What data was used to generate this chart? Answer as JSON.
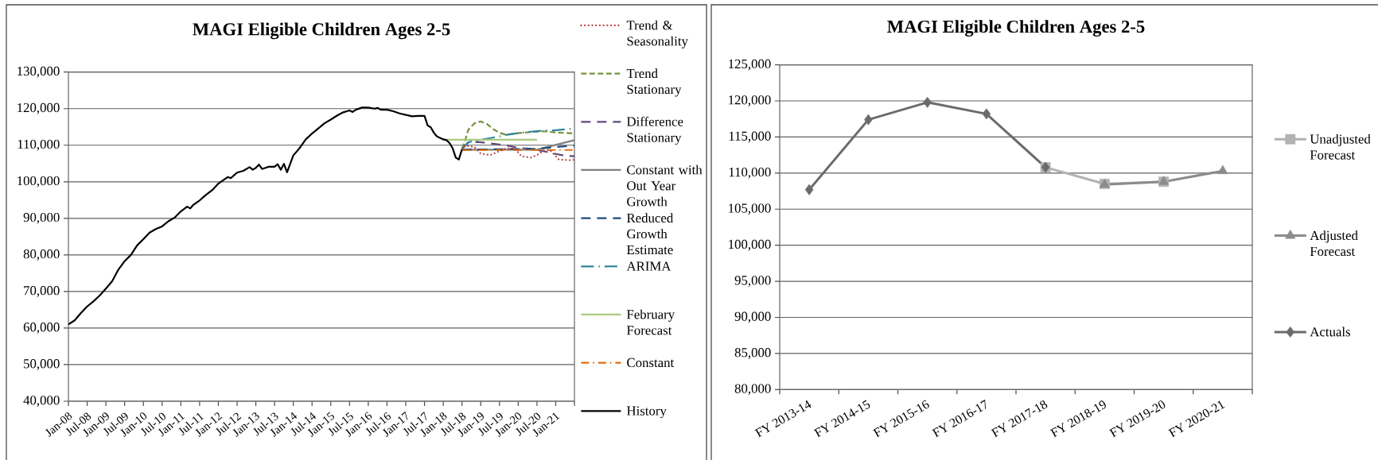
{
  "chart_data": [
    {
      "type": "line",
      "title": "MAGI Eligible Children Ages 2-5",
      "xlim": [
        "2008-01",
        "2021-07"
      ],
      "xticks": [
        {
          "value": "2008-01",
          "label": "Jan-08"
        },
        {
          "value": "2008-07",
          "label": "Jul-08"
        },
        {
          "value": "2009-01",
          "label": "Jan-09"
        },
        {
          "value": "2009-07",
          "label": "Jul-09"
        },
        {
          "value": "2010-01",
          "label": "Jan-10"
        },
        {
          "value": "2010-07",
          "label": "Jul-10"
        },
        {
          "value": "2011-01",
          "label": "Jan-11"
        },
        {
          "value": "2011-07",
          "label": "Jul-11"
        },
        {
          "value": "2012-01",
          "label": "Jan-12"
        },
        {
          "value": "2012-07",
          "label": "Jul-12"
        },
        {
          "value": "2013-01",
          "label": "Jan-13"
        },
        {
          "value": "2013-07",
          "label": "Jul-13"
        },
        {
          "value": "2014-01",
          "label": "Jan-14"
        },
        {
          "value": "2014-07",
          "label": "Jul-14"
        },
        {
          "value": "2015-01",
          "label": "Jan-15"
        },
        {
          "value": "2015-07",
          "label": "Jul-15"
        },
        {
          "value": "2016-01",
          "label": "Jan-16"
        },
        {
          "value": "2016-07",
          "label": "Jul-16"
        },
        {
          "value": "2017-01",
          "label": "Jan-17"
        },
        {
          "value": "2017-07",
          "label": "Jul-17"
        },
        {
          "value": "2018-01",
          "label": "Jan-18"
        },
        {
          "value": "2018-07",
          "label": "Jul-18"
        },
        {
          "value": "2019-01",
          "label": "Jan-19"
        },
        {
          "value": "2019-07",
          "label": "Jul-19"
        },
        {
          "value": "2020-01",
          "label": "Jan-20"
        },
        {
          "value": "2020-07",
          "label": "Jul-20"
        },
        {
          "value": "2021-01",
          "label": "Jan-21"
        },
        {
          "value": "2021-07",
          "label": null
        }
      ],
      "ylim": [
        40000,
        130000
      ],
      "yticks": [
        {
          "value": 40000,
          "label": "40,000"
        },
        {
          "value": 50000,
          "label": "50,000"
        },
        {
          "value": 60000,
          "label": "60,000"
        },
        {
          "value": 70000,
          "label": "70,000"
        },
        {
          "value": 80000,
          "label": "80,000"
        },
        {
          "value": 90000,
          "label": "90,000"
        },
        {
          "value": 100000,
          "label": "100,000"
        },
        {
          "value": 110000,
          "label": "110,000"
        },
        {
          "value": 120000,
          "label": "120,000"
        },
        {
          "value": 130000,
          "label": "130,000"
        }
      ],
      "grid": "y",
      "legend": "right",
      "series": [
        {
          "name": "Trend & Seasonality",
          "color": "#B0403C",
          "line_style": "dotted",
          "x": [
            "2018-07",
            "2018-08",
            "2018-11",
            "2019-01",
            "2019-04",
            "2019-06",
            "2019-09",
            "2019-12",
            "2020-02",
            "2020-05",
            "2020-07",
            "2020-09",
            "2020-11",
            "2021-02",
            "2021-05",
            "2021-07"
          ],
          "values": [
            109000,
            109900,
            109500,
            107700,
            107300,
            108000,
            109100,
            109100,
            107000,
            106600,
            107300,
            108400,
            108800,
            106100,
            105900,
            106000
          ]
        },
        {
          "name": "Trend Stationary",
          "color": "#77933C",
          "line_style": "dashed",
          "x": [
            "2018-07",
            "2018-08",
            "2018-09",
            "2018-11",
            "2019-01",
            "2019-03",
            "2019-05",
            "2019-07",
            "2019-09",
            "2019-11",
            "2020-01",
            "2020-05",
            "2020-09",
            "2021-01",
            "2021-05",
            "2021-07"
          ],
          "values": [
            109000,
            111300,
            114200,
            116000,
            116500,
            115800,
            114400,
            113400,
            112900,
            113100,
            113300,
            113600,
            113800,
            113500,
            113300,
            113300
          ]
        },
        {
          "name": "Difference Stationary",
          "color": "#604A7B",
          "line_style": "long dashed",
          "x": [
            "2018-07",
            "2018-09",
            "2018-12",
            "2019-04",
            "2019-09",
            "2020-01",
            "2020-05",
            "2020-09",
            "2020-12",
            "2021-04",
            "2021-07"
          ],
          "values": [
            109000,
            110700,
            110900,
            110500,
            110000,
            109300,
            109000,
            108400,
            107800,
            107100,
            107000
          ]
        },
        {
          "name": "Constant with Out Year Growth",
          "color": "#808080",
          "line_style": "solid",
          "x": [
            "2018-07",
            "2020-07",
            "2021-01",
            "2021-07"
          ],
          "values": [
            108800,
            108800,
            110100,
            111400
          ]
        },
        {
          "name": "Reduced Growth Estimate",
          "color": "#1F497D",
          "line_style": "long dashed",
          "x": [
            "2018-07",
            "2020-07",
            "2021-01",
            "2021-07"
          ],
          "values": [
            108800,
            109000,
            109500,
            109900
          ]
        },
        {
          "name": "ARIMA",
          "color": "#31859C",
          "line_style": "long dash dot",
          "x": [
            "2018-07",
            "2018-09",
            "2018-11",
            "2019-03",
            "2019-07",
            "2019-09",
            "2020-01",
            "2020-05",
            "2020-09",
            "2021-01",
            "2021-05",
            "2021-07"
          ],
          "values": [
            109000,
            110800,
            111200,
            111800,
            112400,
            112800,
            113300,
            113700,
            114000,
            114100,
            114400,
            114600
          ]
        },
        {
          "name": "February Forecast",
          "color": "#A9C97F",
          "line_style": "solid",
          "x": [
            "2018-01",
            "2020-07"
          ],
          "values": [
            111500,
            111500
          ]
        },
        {
          "name": "Constant",
          "color": "#E46C0A",
          "line_style": "dash dot",
          "x": [
            "2018-07",
            "2021-07"
          ],
          "values": [
            108700,
            108700
          ]
        },
        {
          "name": "History",
          "color": "#000000",
          "line_style": "solid",
          "x": [
            "2008-01",
            "2008-03",
            "2008-05",
            "2008-07",
            "2008-09",
            "2008-11",
            "2009-01",
            "2009-03",
            "2009-05",
            "2009-07",
            "2009-09",
            "2009-11",
            "2010-01",
            "2010-03",
            "2010-05",
            "2010-07",
            "2010-09",
            "2010-11",
            "2011-01",
            "2011-03",
            "2011-04",
            "2011-05",
            "2011-07",
            "2011-09",
            "2011-11",
            "2012-01",
            "2012-03",
            "2012-04",
            "2012-05",
            "2012-07",
            "2012-09",
            "2012-11",
            "2012-12",
            "2013-01",
            "2013-02",
            "2013-03",
            "2013-05",
            "2013-07",
            "2013-08",
            "2013-09",
            "2013-10",
            "2013-11",
            "2014-01",
            "2014-03",
            "2014-05",
            "2014-07",
            "2014-09",
            "2014-11",
            "2015-01",
            "2015-03",
            "2015-05",
            "2015-07",
            "2015-08",
            "2015-09",
            "2015-11",
            "2016-01",
            "2016-03",
            "2016-04",
            "2016-05",
            "2016-07",
            "2016-09",
            "2016-11",
            "2017-01",
            "2017-03",
            "2017-05",
            "2017-07",
            "2017-08",
            "2017-09",
            "2017-10",
            "2017-11",
            "2018-01",
            "2018-02",
            "2018-03",
            "2018-04",
            "2018-05",
            "2018-06",
            "2018-07"
          ],
          "values": [
            61000,
            62100,
            64100,
            65900,
            67300,
            68900,
            70800,
            72800,
            76000,
            78300,
            80000,
            82600,
            84300,
            86100,
            87100,
            87800,
            89200,
            90200,
            91900,
            93200,
            92700,
            93700,
            94900,
            96400,
            97700,
            99500,
            100700,
            101300,
            101000,
            102500,
            103000,
            104000,
            103300,
            103800,
            104700,
            103500,
            104100,
            104100,
            104800,
            103300,
            104900,
            102600,
            107200,
            109200,
            111600,
            113200,
            114600,
            116000,
            117000,
            118100,
            119000,
            119500,
            119100,
            119700,
            120300,
            120300,
            120000,
            120200,
            119700,
            119700,
            119300,
            118700,
            118300,
            117900,
            118000,
            118000,
            115400,
            114900,
            113400,
            112400,
            111600,
            111400,
            110600,
            109200,
            106600,
            106100,
            108900
          ]
        }
      ]
    },
    {
      "type": "line",
      "title": "MAGI Eligible Children Ages 2-5",
      "categories": [
        "FY 2013-14",
        "FY 2014-15",
        "FY 2015-16",
        "FY 2016-17",
        "FY 2017-18",
        "FY 2018-19",
        "FY 2019-20",
        "FY 2020-21"
      ],
      "ylim": [
        80000,
        125000
      ],
      "yticks": [
        {
          "value": 80000,
          "label": "80,000"
        },
        {
          "value": 85000,
          "label": "85,000"
        },
        {
          "value": 90000,
          "label": "90,000"
        },
        {
          "value": 95000,
          "label": "95,000"
        },
        {
          "value": 100000,
          "label": "100,000"
        },
        {
          "value": 105000,
          "label": "105,000"
        },
        {
          "value": 110000,
          "label": "110,000"
        },
        {
          "value": 115000,
          "label": "115,000"
        },
        {
          "value": 120000,
          "label": "120,000"
        },
        {
          "value": 125000,
          "label": "125,000"
        }
      ],
      "grid": "y",
      "legend": "right",
      "line_style": "solid",
      "series": [
        {
          "name": "Unadjusted Forecast",
          "color": "#B2B2B2",
          "marker": "square",
          "values": [
            null,
            null,
            null,
            null,
            110800,
            108500,
            108800,
            null
          ]
        },
        {
          "name": "Adjusted Forecast",
          "color": "#8C8C8C",
          "marker": "triangle",
          "values": [
            null,
            null,
            null,
            null,
            null,
            108400,
            108800,
            110300
          ]
        },
        {
          "name": "Actuals",
          "color": "#6B6B6B",
          "marker": "diamond",
          "values": [
            107700,
            117400,
            119800,
            118200,
            110800,
            null,
            null,
            null
          ]
        }
      ]
    }
  ]
}
